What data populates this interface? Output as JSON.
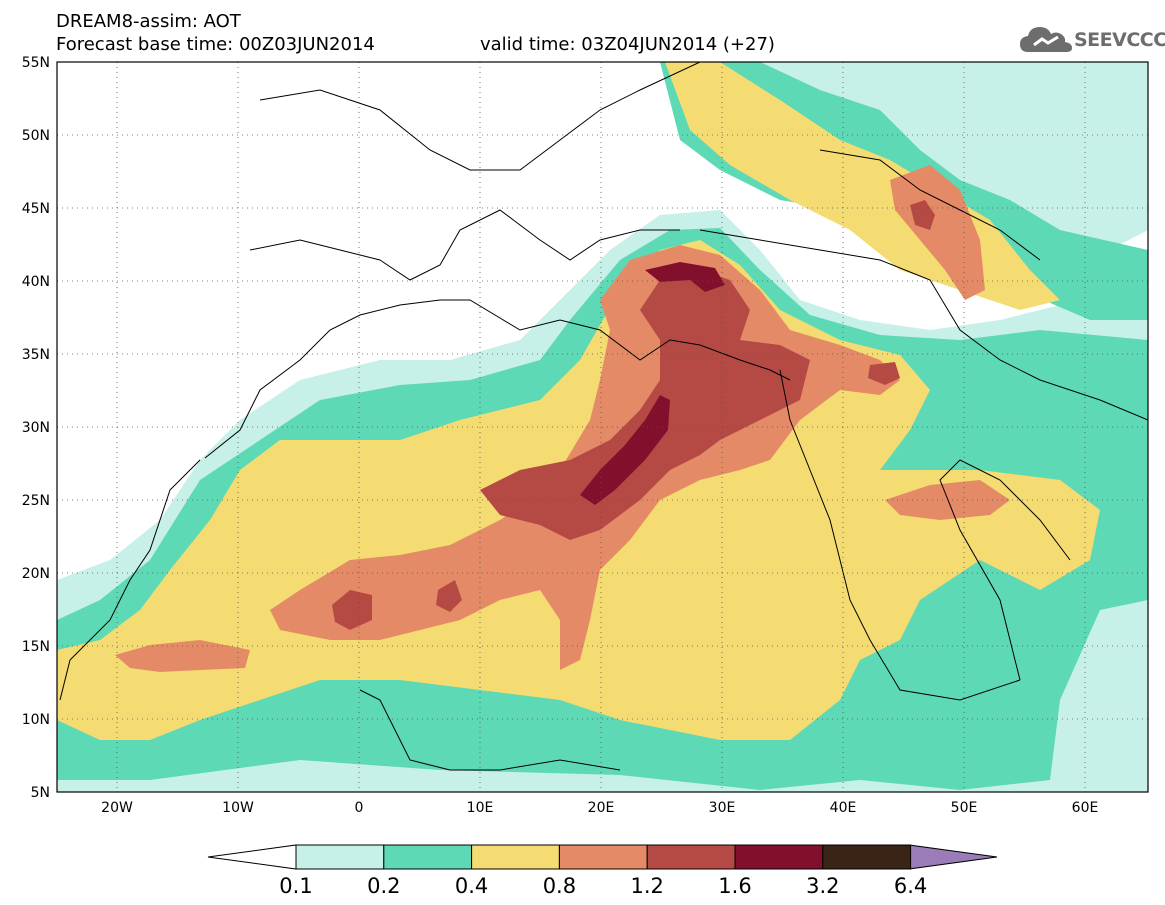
{
  "header": {
    "title_line1": "DREAM8-assim: AOT",
    "title_line2": "Forecast base time: 00Z03JUN2014",
    "valid_time": "valid time: 03Z04JUN2014 (+27)"
  },
  "logo": {
    "text": "SEEVCCC",
    "icon": "cloud-icon",
    "color": "#6d6d6d"
  },
  "map": {
    "projection": "lat-lon",
    "lon_range": [
      -25,
      65
    ],
    "lat_range": [
      5,
      55
    ],
    "lon_ticks": [
      "20W",
      "10W",
      "0",
      "10E",
      "20E",
      "30E",
      "40E",
      "50E",
      "60E"
    ],
    "lat_ticks": [
      "55N",
      "50N",
      "45N",
      "40N",
      "35N",
      "30N",
      "25N",
      "20N",
      "15N",
      "10N",
      "5N"
    ],
    "grid": "dotted"
  },
  "colorbar": {
    "levels": [
      "0.1",
      "0.2",
      "0.4",
      "0.8",
      "1.2",
      "1.6",
      "3.2",
      "6.4"
    ],
    "colors": [
      "#c7f0e8",
      "#5ed9b5",
      "#f4dc72",
      "#e58a66",
      "#b54a45",
      "#82102d",
      "#3a2416",
      "#9a7cb8"
    ],
    "extend": "both"
  }
}
